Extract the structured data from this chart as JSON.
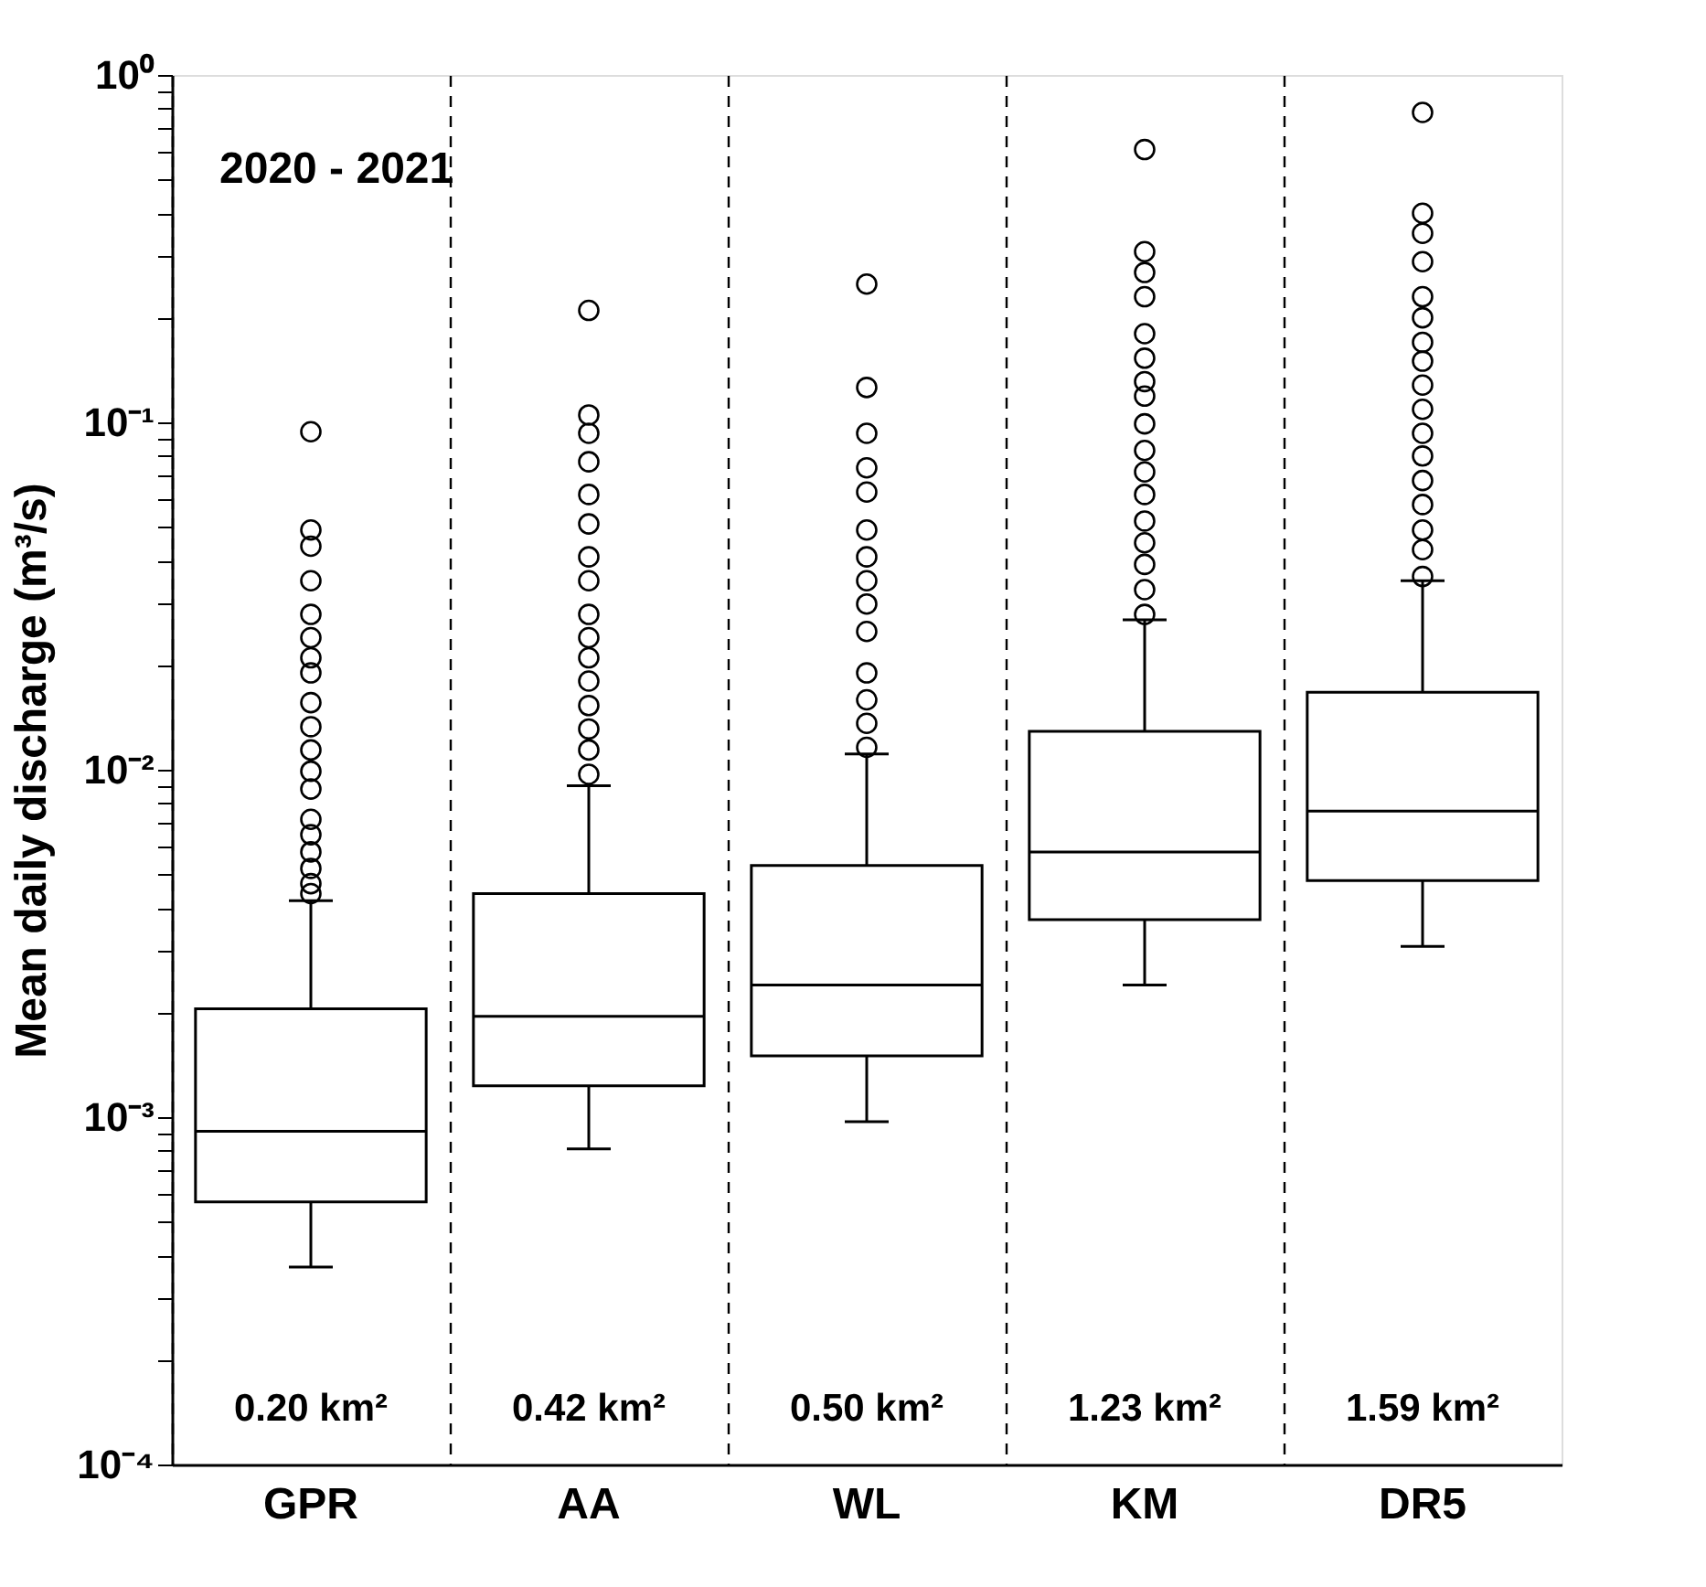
{
  "chart_data": {
    "type": "box",
    "ylabel": "Mean daily discharge (m³/s)",
    "categories": [
      "GPR",
      "AA",
      "WL",
      "KM",
      "DR5"
    ],
    "color": "#000000",
    "boxes": [
      {
        "low": 0.00037,
        "q1": 0.00057,
        "median": 0.00091,
        "q3": 0.00205,
        "high": 0.0042,
        "outliers": [
          0.094,
          0.049,
          0.044,
          0.035,
          0.028,
          0.024,
          0.021,
          0.019,
          0.0156,
          0.0133,
          0.0114,
          0.0099,
          0.0088,
          0.0072,
          0.0065,
          0.0058,
          0.0052,
          0.0047,
          0.0044
        ]
      },
      {
        "low": 0.00081,
        "q1": 0.00123,
        "median": 0.00195,
        "q3": 0.0044,
        "high": 0.009,
        "outliers": [
          0.21,
          0.105,
          0.093,
          0.077,
          0.062,
          0.051,
          0.041,
          0.035,
          0.028,
          0.024,
          0.021,
          0.018,
          0.0153,
          0.0131,
          0.0114,
          0.0097
        ]
      },
      {
        "low": 0.00097,
        "q1": 0.0015,
        "median": 0.0024,
        "q3": 0.0053,
        "high": 0.0111,
        "outliers": [
          0.25,
          0.126,
          0.093,
          0.074,
          0.063,
          0.049,
          0.041,
          0.035,
          0.03,
          0.025,
          0.019,
          0.0159,
          0.0136,
          0.0116
        ]
      },
      {
        "low": 0.0024,
        "q1": 0.0037,
        "median": 0.0058,
        "q3": 0.0129,
        "high": 0.027,
        "outliers": [
          0.61,
          0.31,
          0.27,
          0.23,
          0.18,
          0.153,
          0.131,
          0.119,
          0.099,
          0.083,
          0.072,
          0.062,
          0.052,
          0.045,
          0.039,
          0.033,
          0.028
        ]
      },
      {
        "low": 0.0031,
        "q1": 0.0048,
        "median": 0.0076,
        "q3": 0.0167,
        "high": 0.035,
        "outliers": [
          0.78,
          0.4,
          0.35,
          0.29,
          0.23,
          0.2,
          0.17,
          0.15,
          0.128,
          0.109,
          0.093,
          0.08,
          0.068,
          0.058,
          0.049,
          0.043,
          0.036
        ]
      }
    ],
    "log": true,
    "ylim": [
      0.0001,
      1
    ],
    "yticks": [
      {
        "value": 0.0001,
        "label": "10⁻⁴"
      },
      {
        "value": 0.0002,
        "label": null
      },
      {
        "value": 0.0003,
        "label": null
      },
      {
        "value": 0.0004,
        "label": null
      },
      {
        "value": 0.0005,
        "label": null
      },
      {
        "value": 0.0006,
        "label": null
      },
      {
        "value": 0.0007,
        "label": null
      },
      {
        "value": 0.0008,
        "label": null
      },
      {
        "value": 0.0009,
        "label": null
      },
      {
        "value": 0.001,
        "label": "10⁻³"
      },
      {
        "value": 0.002,
        "label": null
      },
      {
        "value": 0.003,
        "label": null
      },
      {
        "value": 0.004,
        "label": null
      },
      {
        "value": 0.005,
        "label": null
      },
      {
        "value": 0.006,
        "label": null
      },
      {
        "value": 0.007,
        "label": null
      },
      {
        "value": 0.008,
        "label": null
      },
      {
        "value": 0.009,
        "label": null
      },
      {
        "value": 0.01,
        "label": "10⁻²"
      },
      {
        "value": 0.02,
        "label": null
      },
      {
        "value": 0.03,
        "label": null
      },
      {
        "value": 0.04,
        "label": null
      },
      {
        "value": 0.05,
        "label": null
      },
      {
        "value": 0.06,
        "label": null
      },
      {
        "value": 0.07,
        "label": null
      },
      {
        "value": 0.08,
        "label": null
      },
      {
        "value": 0.09,
        "label": null
      },
      {
        "value": 0.1,
        "label": "10⁻¹"
      },
      {
        "value": 0.2,
        "label": null
      },
      {
        "value": 0.3,
        "label": null
      },
      {
        "value": 0.4,
        "label": null
      },
      {
        "value": 0.5,
        "label": null
      },
      {
        "value": 0.6,
        "label": null
      },
      {
        "value": 0.7,
        "label": null
      },
      {
        "value": 0.8,
        "label": null
      },
      {
        "value": 0.9,
        "label": null
      },
      {
        "value": 1,
        "label": "10⁰"
      }
    ],
    "grid": "x",
    "line_style": "dashed",
    "marker": "circle",
    "annotations": [
      "2020 - 2021",
      "0.20 km²",
      "0.42 km²",
      "0.50 km²",
      "1.23 km²",
      "1.59 km²"
    ]
  }
}
